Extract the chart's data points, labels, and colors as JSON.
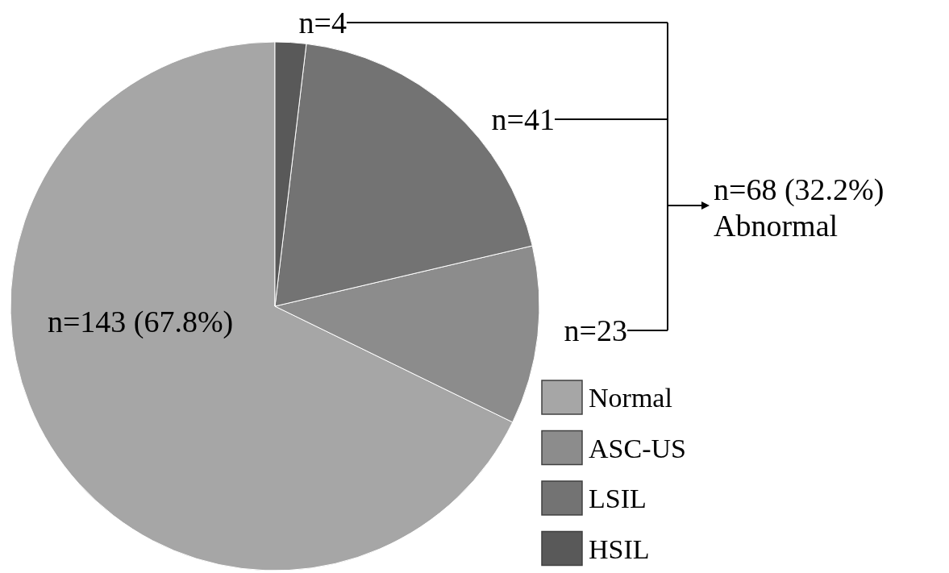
{
  "chart_data": {
    "type": "pie",
    "categories": [
      "Normal",
      "ASC-US",
      "LSIL",
      "HSIL"
    ],
    "values": [
      143,
      23,
      41,
      4
    ],
    "colors": [
      "#a6a6a6",
      "#8c8c8c",
      "#737373",
      "#595959"
    ],
    "value_labels": [
      "n=143 (67.8%)",
      "n=23",
      "n=41",
      "n=4"
    ],
    "annotations": [
      "n=68 (32.2%)",
      "Abnormal"
    ],
    "legend": "bottom right"
  }
}
